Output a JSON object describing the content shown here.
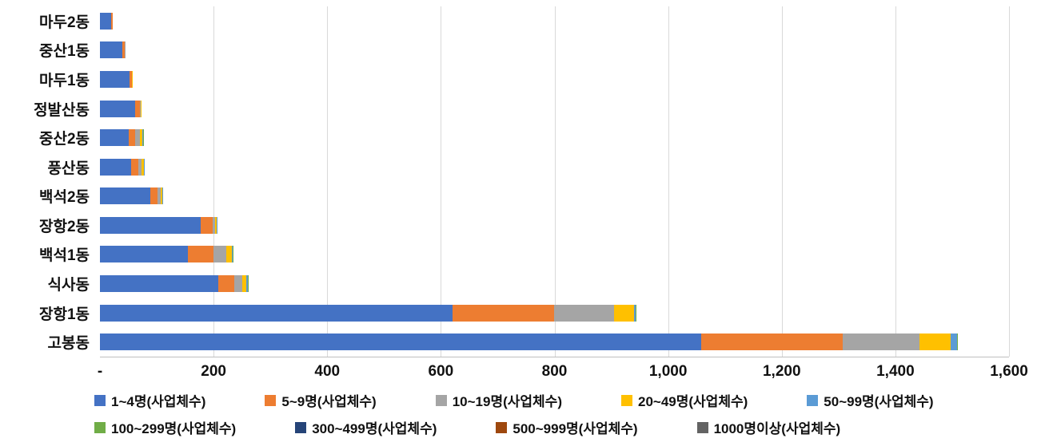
{
  "chart_data": {
    "type": "bar",
    "orientation": "horizontal-stacked",
    "title": "",
    "xlabel": "",
    "ylabel": "",
    "xlim": [
      0,
      1600
    ],
    "grid": true,
    "legend_position": "bottom",
    "categories": [
      "마두2동",
      "중산1동",
      "마두1동",
      "정발산동",
      "중산2동",
      "풍산동",
      "백석2동",
      "장항2동",
      "백석1동",
      "식사동",
      "장항1동",
      "고봉동"
    ],
    "x_ticks": [
      {
        "label": "-",
        "value": 0
      },
      {
        "label": "200",
        "value": 200
      },
      {
        "label": "400",
        "value": 400
      },
      {
        "label": "600",
        "value": 600
      },
      {
        "label": "800",
        "value": 800
      },
      {
        "label": "1,000",
        "value": 1000
      },
      {
        "label": "1,200",
        "value": 1200
      },
      {
        "label": "1,400",
        "value": 1400
      },
      {
        "label": "1,600",
        "value": 1600
      }
    ],
    "series": [
      {
        "name": "1~4명(사업체수)",
        "color": "#4472C4",
        "values": [
          20,
          40,
          52,
          62,
          50,
          55,
          88,
          178,
          155,
          208,
          620,
          1058
        ]
      },
      {
        "name": "5~9명(사업체수)",
        "color": "#ED7D31",
        "values": [
          2,
          3,
          4,
          8,
          12,
          12,
          14,
          20,
          45,
          28,
          180,
          250
        ]
      },
      {
        "name": "10~19명(사업체수)",
        "color": "#A5A5A5",
        "values": [
          0,
          1,
          1,
          2,
          8,
          6,
          5,
          5,
          22,
          14,
          105,
          135
        ]
      },
      {
        "name": "20~49명(사업체수)",
        "color": "#FFC000",
        "values": [
          0,
          0,
          1,
          1,
          5,
          4,
          3,
          3,
          10,
          8,
          35,
          55
        ]
      },
      {
        "name": "50~99명(사업체수)",
        "color": "#5B9BD5",
        "values": [
          0,
          0,
          0,
          0,
          1,
          1,
          1,
          1,
          2,
          2,
          3,
          10
        ]
      },
      {
        "name": "100~299명(사업체수)",
        "color": "#70AD47",
        "values": [
          0,
          0,
          0,
          0,
          1,
          0,
          0,
          0,
          1,
          1,
          1,
          2
        ]
      },
      {
        "name": "300~499명(사업체수)",
        "color": "#264478",
        "values": [
          0,
          0,
          0,
          0,
          0,
          0,
          0,
          0,
          0,
          0,
          0,
          0
        ]
      },
      {
        "name": "500~999명(사업체수)",
        "color": "#9E480E",
        "values": [
          0,
          0,
          0,
          0,
          0,
          0,
          0,
          0,
          0,
          0,
          0,
          0
        ]
      },
      {
        "name": "1000명이상(사업체수)",
        "color": "#636363",
        "values": [
          0,
          0,
          0,
          0,
          0,
          0,
          0,
          0,
          0,
          0,
          0,
          0
        ]
      }
    ],
    "legend_rows": [
      [
        0,
        1,
        2,
        3,
        4
      ],
      [
        5,
        6,
        7,
        8
      ]
    ]
  }
}
